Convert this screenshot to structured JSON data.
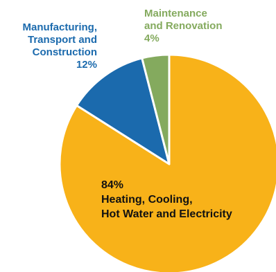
{
  "chart_data": {
    "type": "pie",
    "slices": [
      {
        "lines": [
          "84%",
          "Heating, Cooling,",
          "Hot Water and Electricity"
        ],
        "percent": "84%",
        "value": 84,
        "color": "#f8b219"
      },
      {
        "lines": [
          "Manufacturing,",
          "Transport and",
          "Construction",
          "12%"
        ],
        "percent": "12%",
        "value": 12,
        "color": "#1b6aad"
      },
      {
        "lines": [
          "Maintenance",
          "and Renovation",
          "4%"
        ],
        "percent": "4%",
        "value": 4,
        "color": "#84aa5e"
      }
    ],
    "start": "top",
    "direction": "clockwise",
    "slice_border_color": "#ffffff"
  }
}
